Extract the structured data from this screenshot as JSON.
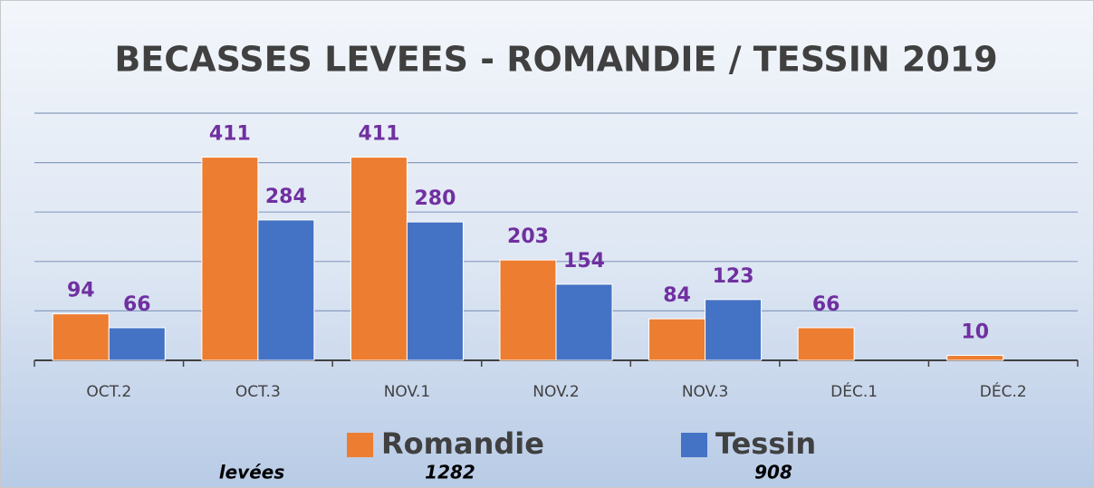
{
  "chart_data": {
    "type": "bar",
    "title": "BECASSES LEVEES - ROMANDIE / TESSIN 2019",
    "categories": [
      "OCT.2",
      "OCT.3",
      "NOV.1",
      "NOV.2",
      "NOV.3",
      "DÉC.1",
      "DÉC.2"
    ],
    "series": [
      {
        "name": "Romandie",
        "color": "#ed7d31",
        "values": [
          94,
          411,
          411,
          203,
          84,
          66,
          10
        ],
        "total": 1282
      },
      {
        "name": "Tessin",
        "color": "#4472c4",
        "values": [
          66,
          284,
          280,
          154,
          123,
          null,
          null
        ],
        "total": 908
      }
    ],
    "ylim": [
      0,
      500
    ],
    "yticks": [
      0,
      100,
      200,
      300,
      400,
      500
    ],
    "grid": true,
    "label_color": "#7030a0",
    "totals_label": "levées"
  }
}
